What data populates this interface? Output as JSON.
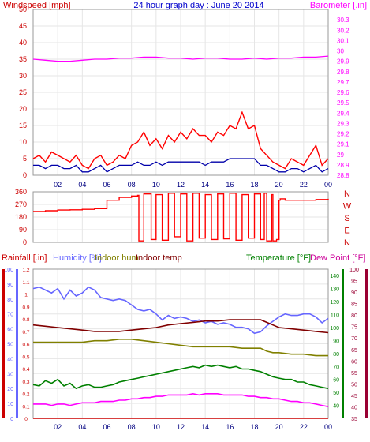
{
  "chart_data": [
    {
      "type": "line",
      "title": "24 hour graph day : June 20 2014",
      "left_label": "Windspeed [mph]",
      "right_label": "Barometer [.in]",
      "ylim_left": [
        0,
        50
      ],
      "left_ticks": [
        "0",
        "5",
        "10",
        "15",
        "20",
        "25",
        "30",
        "35",
        "40",
        "45",
        "50"
      ],
      "ylim_right": [
        28.8,
        30.4
      ],
      "right_ticks": [
        "28.8",
        "28.9",
        "29",
        "29.1",
        "29.2",
        "29.3",
        "29.4",
        "29.5",
        "29.6",
        "29.7",
        "29.8",
        "29.9",
        "30",
        "30.1",
        "30.2",
        "30.3"
      ],
      "x_ticks": [
        "02",
        "04",
        "06",
        "08",
        "10",
        "12",
        "14",
        "16",
        "18",
        "20",
        "22",
        "00"
      ],
      "colors": {
        "gust": "#ff0000",
        "avg": "#0000aa",
        "baro": "#ff00ff",
        "left_label": "#cc0000",
        "right_label": "#ff00ff",
        "title": "#0000cc"
      },
      "series": [
        {
          "key": "baro",
          "x": [
            0,
            1,
            2,
            3,
            4,
            5,
            6,
            7,
            8,
            9,
            10,
            11,
            12,
            13,
            14,
            15,
            16,
            17,
            18,
            19,
            20,
            21,
            22,
            23,
            24
          ],
          "values": [
            29.92,
            29.91,
            29.9,
            29.9,
            29.91,
            29.92,
            29.92,
            29.93,
            29.93,
            29.94,
            29.94,
            29.93,
            29.93,
            29.92,
            29.93,
            29.93,
            29.92,
            29.92,
            29.93,
            29.92,
            29.93,
            29.93,
            29.94,
            29.94,
            29.95
          ]
        },
        {
          "key": "gust",
          "x": [
            0,
            0.5,
            1,
            1.5,
            2,
            2.5,
            3,
            3.5,
            4,
            4.5,
            5,
            5.5,
            6,
            6.5,
            7,
            7.5,
            8,
            8.5,
            9,
            9.5,
            10,
            10.5,
            11,
            11.5,
            12,
            12.5,
            13,
            13.5,
            14,
            14.5,
            15,
            15.5,
            16,
            16.5,
            17,
            17.5,
            18,
            18.5,
            19,
            19.5,
            20,
            20.5,
            21,
            21.5,
            22,
            22.5,
            23,
            23.5,
            24
          ],
          "values": [
            5,
            6,
            4,
            7,
            6,
            5,
            4,
            6,
            3,
            2,
            5,
            6,
            3,
            4,
            6,
            5,
            9,
            10,
            13,
            9,
            11,
            8,
            12,
            10,
            13,
            11,
            14,
            12,
            12,
            10,
            13,
            12,
            15,
            14,
            19,
            14,
            15,
            8,
            6,
            4,
            3,
            2,
            5,
            4,
            3,
            6,
            9,
            3,
            5
          ]
        },
        {
          "key": "avg",
          "x": [
            0,
            0.5,
            1,
            1.5,
            2,
            2.5,
            3,
            3.5,
            4,
            4.5,
            5,
            5.5,
            6,
            6.5,
            7,
            7.5,
            8,
            8.5,
            9,
            9.5,
            10,
            10.5,
            11,
            11.5,
            12,
            12.5,
            13,
            13.5,
            14,
            14.5,
            15,
            15.5,
            16,
            16.5,
            17,
            17.5,
            18,
            18.5,
            19,
            19.5,
            20,
            20.5,
            21,
            21.5,
            22,
            22.5,
            23,
            23.5,
            24
          ],
          "values": [
            3,
            3,
            2,
            3,
            3,
            2,
            2,
            3,
            1,
            1,
            2,
            3,
            1,
            2,
            3,
            3,
            3,
            4,
            3,
            3,
            4,
            3,
            4,
            4,
            4,
            4,
            4,
            4,
            3,
            4,
            4,
            4,
            5,
            5,
            5,
            5,
            5,
            3,
            3,
            2,
            1,
            1,
            2,
            2,
            1,
            2,
            3,
            1,
            2
          ]
        }
      ]
    },
    {
      "type": "line",
      "ylim": [
        0,
        360
      ],
      "left_ticks": [
        "0",
        "90",
        "180",
        "270",
        "360"
      ],
      "right_labels": [
        "N",
        "W",
        "S",
        "E",
        "N"
      ],
      "color": "#ff0000",
      "series": [
        {
          "key": "direction",
          "x": [
            0,
            1,
            2,
            3,
            4,
            5,
            5.8,
            6,
            7,
            8,
            8.5,
            8.6,
            9,
            9.6,
            10,
            10.5,
            11,
            11.5,
            12,
            12.5,
            13,
            13.5,
            14,
            14.5,
            15,
            15.5,
            16,
            16.5,
            17,
            17.5,
            18,
            18.5,
            18.8,
            19,
            19.4,
            19.5,
            19.8,
            20,
            20.1,
            20.5,
            21,
            22,
            23,
            24
          ],
          "values": [
            220,
            225,
            230,
            232,
            235,
            240,
            240,
            300,
            320,
            330,
            335,
            10,
            345,
            20,
            340,
            15,
            350,
            40,
            345,
            10,
            350,
            30,
            340,
            20,
            345,
            25,
            350,
            15,
            340,
            30,
            345,
            20,
            350,
            10,
            340,
            10,
            20,
            300,
            310,
            300,
            300,
            300,
            305,
            310
          ]
        }
      ]
    },
    {
      "type": "line",
      "labels": {
        "rain": "Rainfall [.in]",
        "hum": "Humidity [%]",
        "indoor_hum": "Indoor hum",
        "indoor_temp": "Indoor temp",
        "temp": "Temperature [°F]",
        "dew": "Dew Point [°F]"
      },
      "ticks_rain": [
        "0",
        "0.1",
        "0.2",
        "0.3",
        "0.4",
        "0.5",
        "0.6",
        "0.7",
        "0.8",
        "0.9",
        "1",
        "1.1",
        "1.2"
      ],
      "ticks_hum": [
        "0",
        "10",
        "20",
        "30",
        "40",
        "50",
        "60",
        "70",
        "80",
        "90",
        "100"
      ],
      "ticks_temp": [
        "40",
        "50",
        "60",
        "70",
        "80",
        "90",
        "100",
        "110",
        "120",
        "130",
        "140"
      ],
      "ticks_dew": [
        "35",
        "40",
        "45",
        "50",
        "55",
        "60",
        "65",
        "70",
        "75",
        "80",
        "85",
        "90",
        "95",
        "100"
      ],
      "ylim_hum": [
        0,
        100
      ],
      "ylim_temp": [
        30,
        145
      ],
      "annotations": [
        "",
        "",
        ""
      ],
      "colors": {
        "rain": "#cc0000",
        "hum": "#6666ff",
        "indoor_hum": "#808000",
        "indoor_temp": "#800000",
        "temp": "#008000",
        "dew": "#ff00ff",
        "rain_axis": "#cc0000",
        "hum_axis": "#6666ff",
        "temp_axis": "#008000",
        "dew_axis": "#990033",
        "annot": "#ffff00"
      },
      "series": [
        {
          "key": "humidity",
          "x": [
            0,
            0.5,
            1,
            1.5,
            2,
            2.5,
            3,
            3.5,
            4,
            4.5,
            5,
            5.5,
            6,
            6.5,
            7,
            7.5,
            8,
            8.5,
            9,
            9.5,
            10,
            10.5,
            11,
            11.5,
            12,
            12.5,
            13,
            13.5,
            14,
            14.5,
            15,
            15.5,
            16,
            16.5,
            17,
            17.5,
            18,
            18.5,
            19,
            19.5,
            20,
            20.5,
            21,
            21.5,
            22,
            22.5,
            23,
            23.5,
            24
          ],
          "values": [
            87,
            88,
            86,
            84,
            87,
            80,
            86,
            82,
            84,
            88,
            86,
            81,
            80,
            79,
            80,
            79,
            76,
            73,
            72,
            73,
            70,
            66,
            69,
            67,
            68,
            67,
            65,
            66,
            64,
            65,
            63,
            64,
            63,
            61,
            61,
            60,
            57,
            58,
            62,
            65,
            68,
            70,
            69,
            69,
            70,
            70,
            68,
            64,
            67
          ]
        },
        {
          "key": "indoor_hum",
          "x": [
            0,
            1,
            2,
            3,
            4,
            5,
            6,
            7,
            8,
            9,
            10,
            11,
            12,
            13,
            14,
            15,
            16,
            17,
            18,
            18.5,
            19,
            19.5,
            20,
            21,
            22,
            23,
            24
          ],
          "values": [
            51,
            51,
            51,
            51,
            51,
            52,
            52,
            53,
            53,
            52,
            51,
            50,
            49,
            48,
            48,
            48,
            48,
            47,
            47,
            47,
            45,
            44,
            44,
            43,
            43,
            42,
            42
          ]
        },
        {
          "key": "indoor_temp",
          "x": [
            0,
            1,
            2,
            3,
            4,
            5,
            6,
            7,
            8,
            9,
            10,
            11,
            12,
            13,
            14,
            15,
            16,
            17,
            18,
            18.5,
            19,
            19.5,
            20,
            21,
            22,
            23,
            24
          ],
          "values": [
            102,
            101,
            100,
            99,
            98,
            97,
            97,
            97,
            98,
            99,
            100,
            102,
            103,
            104,
            105,
            105,
            106,
            106,
            106,
            106,
            104,
            102,
            100,
            99,
            98,
            97,
            96
          ]
        },
        {
          "key": "temperature",
          "x": [
            0,
            0.5,
            1,
            1.5,
            2,
            2.5,
            3,
            3.5,
            4,
            4.5,
            5,
            5.5,
            6,
            6.5,
            7,
            7.5,
            8,
            8.5,
            9,
            9.5,
            10,
            10.5,
            11,
            11.5,
            12,
            12.5,
            13,
            13.5,
            14,
            14.5,
            15,
            15.5,
            16,
            16.5,
            17,
            17.5,
            18,
            18.5,
            19,
            19.5,
            20,
            20.5,
            21,
            21.5,
            22,
            22.5,
            23,
            23.5,
            24
          ],
          "values": [
            56,
            55,
            59,
            57,
            60,
            55,
            57,
            53,
            55,
            56,
            54,
            54,
            55,
            56,
            58,
            59,
            60,
            61,
            62,
            63,
            64,
            65,
            66,
            67,
            68,
            69,
            70,
            69,
            71,
            70,
            71,
            70,
            69,
            70,
            68,
            68,
            67,
            66,
            64,
            62,
            61,
            60,
            60,
            58,
            58,
            56,
            55,
            54,
            53
          ]
        },
        {
          "key": "dewpoint",
          "x": [
            0,
            0.5,
            1,
            1.5,
            2,
            2.5,
            3,
            3.5,
            4,
            4.5,
            5,
            5.5,
            6,
            6.5,
            7,
            7.5,
            8,
            8.5,
            9,
            9.5,
            10,
            10.5,
            11,
            11.5,
            12,
            12.5,
            13,
            13.5,
            14,
            14.5,
            15,
            15.5,
            16,
            16.5,
            17,
            17.5,
            18,
            18.5,
            19,
            19.5,
            20,
            20.5,
            21,
            21.5,
            22,
            22.5,
            23,
            23.5,
            24
          ],
          "values": [
            41,
            41,
            41,
            40,
            41,
            41,
            40,
            41,
            42,
            42,
            42,
            43,
            43,
            43,
            44,
            44,
            45,
            45,
            46,
            46,
            47,
            47,
            48,
            48,
            48,
            48,
            49,
            48,
            49,
            49,
            49,
            48,
            48,
            48,
            48,
            47,
            47,
            46,
            46,
            45,
            45,
            44,
            43,
            43,
            42,
            42,
            41,
            40,
            39
          ]
        },
        {
          "key": "rain",
          "x": [
            0,
            24
          ],
          "values": [
            0,
            0
          ]
        }
      ]
    }
  ]
}
